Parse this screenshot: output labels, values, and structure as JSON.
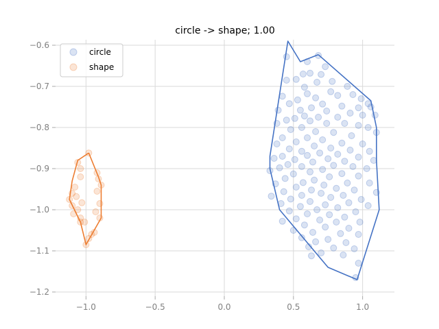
{
  "chart_data": {
    "type": "scatter",
    "title": "circle -> shape; 1.00",
    "xlabel": "",
    "ylabel": "",
    "xlim": [
      -1.22,
      1.23
    ],
    "ylim": [
      -1.2,
      -0.6
    ],
    "grid": true,
    "legend_position": "top-left",
    "x_ticks": [
      -1.0,
      -0.5,
      0.0,
      0.5,
      1.0
    ],
    "x_tick_labels": [
      "−1.0",
      "−0.5",
      "0.0",
      "0.5",
      "1.0"
    ],
    "y_ticks": [
      -0.6,
      -0.7,
      -0.8,
      -0.9,
      -1.0,
      -1.1,
      -1.2
    ],
    "y_tick_labels": [
      "−0.6",
      "−0.7",
      "−0.8",
      "−0.9",
      "−1.0",
      "−1.1",
      "−1.2"
    ],
    "series": [
      {
        "name": "circle",
        "color": "#4472c4",
        "hull": [
          [
            0.68,
            -0.623
          ],
          [
            1.06,
            -0.735
          ],
          [
            1.1,
            -0.8
          ],
          [
            1.1,
            -0.88
          ],
          [
            1.12,
            -1.0
          ],
          [
            0.96,
            -1.17
          ],
          [
            0.75,
            -1.14
          ],
          [
            0.4,
            -1.0
          ],
          [
            0.33,
            -0.9
          ],
          [
            0.33,
            -0.87
          ],
          [
            0.46,
            -0.59
          ],
          [
            0.55,
            -0.64
          ],
          [
            0.68,
            -0.623
          ]
        ],
        "points": [
          [
            0.45,
            -0.628
          ],
          [
            0.68,
            -0.625
          ],
          [
            0.6,
            -0.64
          ],
          [
            0.73,
            -0.652
          ],
          [
            0.57,
            -0.67
          ],
          [
            0.62,
            -0.668
          ],
          [
            0.7,
            -0.671
          ],
          [
            0.52,
            -0.683
          ],
          [
            0.45,
            -0.685
          ],
          [
            0.78,
            -0.688
          ],
          [
            0.67,
            -0.69
          ],
          [
            0.89,
            -0.7
          ],
          [
            0.58,
            -0.702
          ],
          [
            0.77,
            -0.713
          ],
          [
            0.6,
            -0.718
          ],
          [
            0.42,
            -0.724
          ],
          [
            0.82,
            -0.722
          ],
          [
            0.93,
            -0.72
          ],
          [
            0.66,
            -0.728
          ],
          [
            0.53,
            -0.733
          ],
          [
            0.99,
            -0.73
          ],
          [
            1.04,
            -0.742
          ],
          [
            1.06,
            -0.75
          ],
          [
            0.47,
            -0.742
          ],
          [
            0.71,
            -0.743
          ],
          [
            0.85,
            -0.748
          ],
          [
            0.63,
            -0.752
          ],
          [
            0.55,
            -0.758
          ],
          [
            0.97,
            -0.752
          ],
          [
            0.39,
            -0.758
          ],
          [
            0.74,
            -0.76
          ],
          [
            0.91,
            -0.765
          ],
          [
            1.0,
            -0.77
          ],
          [
            1.09,
            -0.77
          ],
          [
            0.58,
            -0.772
          ],
          [
            0.68,
            -0.775
          ],
          [
            0.51,
            -0.778
          ],
          [
            0.82,
            -0.775
          ],
          [
            0.45,
            -0.782
          ],
          [
            0.62,
            -0.784
          ],
          [
            0.38,
            -0.79
          ],
          [
            0.74,
            -0.79
          ],
          [
            0.87,
            -0.79
          ],
          [
            0.97,
            -0.795
          ],
          [
            1.04,
            -0.8
          ],
          [
            0.56,
            -0.8
          ],
          [
            0.48,
            -0.805
          ],
          [
            0.66,
            -0.81
          ],
          [
            0.79,
            -0.812
          ],
          [
            1.1,
            -0.812
          ],
          [
            0.92,
            -0.82
          ],
          [
            0.42,
            -0.825
          ],
          [
            0.6,
            -0.825
          ],
          [
            0.71,
            -0.83
          ],
          [
            0.52,
            -0.835
          ],
          [
            0.85,
            -0.838
          ],
          [
            1.0,
            -0.84
          ],
          [
            0.38,
            -0.84
          ],
          [
            0.65,
            -0.845
          ],
          [
            0.77,
            -0.85
          ],
          [
            0.47,
            -0.852
          ],
          [
            0.56,
            -0.858
          ],
          [
            0.91,
            -0.855
          ],
          [
            1.05,
            -0.858
          ],
          [
            0.69,
            -0.862
          ],
          [
            0.82,
            -0.865
          ],
          [
            0.42,
            -0.87
          ],
          [
            0.6,
            -0.868
          ],
          [
            0.97,
            -0.872
          ],
          [
            0.36,
            -0.875
          ],
          [
            0.75,
            -0.876
          ],
          [
            0.51,
            -0.878
          ],
          [
            1.08,
            -0.88
          ],
          [
            0.87,
            -0.882
          ],
          [
            0.64,
            -0.884
          ],
          [
            0.46,
            -0.89
          ],
          [
            0.79,
            -0.892
          ],
          [
            0.56,
            -0.895
          ],
          [
            0.93,
            -0.895
          ],
          [
            0.4,
            -0.898
          ],
          [
            1.03,
            -0.9
          ],
          [
            0.71,
            -0.902
          ],
          [
            0.33,
            -0.905
          ],
          [
            0.62,
            -0.908
          ],
          [
            0.85,
            -0.912
          ],
          [
            0.5,
            -0.913
          ],
          [
            0.97,
            -0.918
          ],
          [
            0.76,
            -0.92
          ],
          [
            0.44,
            -0.924
          ],
          [
            0.65,
            -0.928
          ],
          [
            0.57,
            -0.934
          ],
          [
            0.89,
            -0.935
          ],
          [
            1.05,
            -0.935
          ],
          [
            0.37,
            -0.937
          ],
          [
            0.72,
            -0.94
          ],
          [
            0.52,
            -0.945
          ],
          [
            0.81,
            -0.948
          ],
          [
            0.63,
            -0.952
          ],
          [
            0.94,
            -0.952
          ],
          [
            0.43,
            -0.956
          ],
          [
            1.1,
            -0.958
          ],
          [
            0.7,
            -0.96
          ],
          [
            0.56,
            -0.965
          ],
          [
            0.86,
            -0.965
          ],
          [
            0.34,
            -0.967
          ],
          [
            0.77,
            -0.97
          ],
          [
            0.48,
            -0.974
          ],
          [
            0.99,
            -0.975
          ],
          [
            0.62,
            -0.98
          ],
          [
            0.9,
            -0.983
          ],
          [
            0.41,
            -0.985
          ],
          [
            0.73,
            -0.988
          ],
          [
            0.55,
            -0.992
          ],
          [
            1.04,
            -0.99
          ],
          [
            0.82,
            -0.995
          ],
          [
            0.67,
            -1.0
          ],
          [
            0.47,
            -1.003
          ],
          [
            0.95,
            -1.005
          ],
          [
            0.6,
            -1.01
          ],
          [
            0.76,
            -1.012
          ],
          [
            0.87,
            -1.018
          ],
          [
            0.52,
            -1.022
          ],
          [
            0.69,
            -1.025
          ],
          [
            0.42,
            -1.028
          ],
          [
            0.81,
            -1.03
          ],
          [
            0.98,
            -1.03
          ],
          [
            0.58,
            -1.037
          ],
          [
            0.73,
            -1.042
          ],
          [
            0.9,
            -1.045
          ],
          [
            0.5,
            -1.05
          ],
          [
            0.64,
            -1.055
          ],
          [
            0.84,
            -1.058
          ],
          [
            0.97,
            -1.06
          ],
          [
            0.56,
            -1.068
          ],
          [
            0.75,
            -1.072
          ],
          [
            0.66,
            -1.078
          ],
          [
            0.88,
            -1.08
          ],
          [
            0.61,
            -1.09
          ],
          [
            0.79,
            -1.093
          ],
          [
            0.94,
            -1.095
          ],
          [
            0.7,
            -1.105
          ],
          [
            0.86,
            -1.11
          ],
          [
            0.63,
            -1.112
          ],
          [
            0.97,
            -1.13
          ],
          [
            0.95,
            -1.165
          ]
        ]
      },
      {
        "name": "shape",
        "color": "#ed7d31",
        "hull": [
          [
            -0.98,
            -0.862
          ],
          [
            -0.91,
            -0.92
          ],
          [
            -0.89,
            -0.94
          ],
          [
            -0.89,
            -1.02
          ],
          [
            -1.0,
            -1.085
          ],
          [
            -1.04,
            -1.03
          ],
          [
            -1.12,
            -0.975
          ],
          [
            -1.1,
            -0.93
          ],
          [
            -1.06,
            -0.88
          ],
          [
            -0.98,
            -0.862
          ]
        ],
        "points": [
          [
            -0.98,
            -0.862
          ],
          [
            -1.06,
            -0.885
          ],
          [
            -1.04,
            -0.9
          ],
          [
            -0.92,
            -0.91
          ],
          [
            -0.91,
            -0.925
          ],
          [
            -1.04,
            -0.92
          ],
          [
            -1.08,
            -0.945
          ],
          [
            -0.89,
            -0.94
          ],
          [
            -0.92,
            -0.955
          ],
          [
            -1.1,
            -0.96
          ],
          [
            -1.07,
            -0.968
          ],
          [
            -1.12,
            -0.975
          ],
          [
            -1.03,
            -0.983
          ],
          [
            -0.9,
            -0.985
          ],
          [
            -1.1,
            -0.99
          ],
          [
            -1.06,
            -1.0
          ],
          [
            -0.93,
            -1.005
          ],
          [
            -1.09,
            -1.01
          ],
          [
            -1.04,
            -1.02
          ],
          [
            -0.9,
            -1.02
          ],
          [
            -1.01,
            -1.03
          ],
          [
            -1.04,
            -1.03
          ],
          [
            -0.94,
            -1.055
          ],
          [
            -0.96,
            -1.06
          ],
          [
            -0.98,
            -1.07
          ],
          [
            -1.0,
            -1.085
          ]
        ]
      }
    ]
  }
}
